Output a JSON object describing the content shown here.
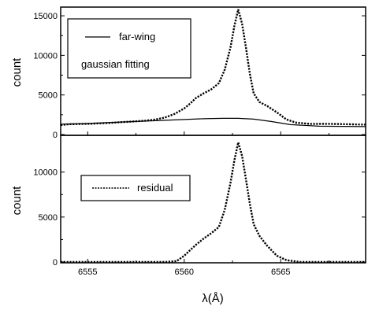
{
  "chart_data": [
    {
      "type": "line",
      "ylabel": "count",
      "xlim": [
        6553.6,
        6569.4
      ],
      "ylim": [
        0,
        16000
      ],
      "yticks": [
        0,
        5000,
        10000,
        15000
      ],
      "ytick_labels": [
        "0",
        "5000",
        "10000",
        "15000"
      ],
      "legend": [
        "far-wing",
        "gaussian fitting"
      ],
      "series": [
        {
          "name": "far-wing",
          "style": "solid",
          "x": [
            6553.6,
            6555,
            6557,
            6559,
            6560,
            6561,
            6562,
            6562.8,
            6563.6,
            6564.5,
            6565.5,
            6567,
            6569.4
          ],
          "y": [
            1300,
            1400,
            1600,
            1800,
            1900,
            2000,
            2050,
            2050,
            1950,
            1650,
            1250,
            1050,
            1000
          ]
        },
        {
          "name": "",
          "style": "dotted",
          "x": [
            6553.6,
            6554,
            6555,
            6556,
            6557,
            6558,
            6558.5,
            6559,
            6559.5,
            6560,
            6560.3,
            6560.6,
            6561,
            6561.4,
            6561.8,
            6562.1,
            6562.4,
            6562.6,
            6562.8,
            6563.0,
            6563.2,
            6563.4,
            6563.6,
            6563.9,
            6564.3,
            6564.8,
            6565.3,
            6565.8,
            6566.5,
            6567.5,
            6568.5,
            6569.4
          ],
          "y": [
            1200,
            1300,
            1350,
            1450,
            1600,
            1750,
            1900,
            2150,
            2600,
            3300,
            3900,
            4600,
            5200,
            5700,
            6500,
            8200,
            11000,
            13700,
            15800,
            14000,
            11000,
            7700,
            5200,
            4100,
            3600,
            2800,
            1900,
            1500,
            1350,
            1350,
            1300,
            1250
          ]
        }
      ]
    },
    {
      "type": "line",
      "ylabel": "count",
      "xlabel": "λ(Å)",
      "xlim": [
        6553.6,
        6569.4
      ],
      "ylim": [
        0,
        14000
      ],
      "xticks": [
        6555,
        6560,
        6565
      ],
      "xtick_labels": [
        "6555",
        "6560",
        "6565"
      ],
      "yticks": [
        0,
        5000,
        10000
      ],
      "ytick_labels": [
        "0",
        "5000",
        "10000"
      ],
      "legend": [
        "residual"
      ],
      "series": [
        {
          "name": "residual",
          "style": "dotted",
          "x": [
            6553.6,
            6555,
            6556,
            6557,
            6558,
            6559,
            6559.6,
            6560,
            6560.3,
            6560.6,
            6561,
            6561.4,
            6561.8,
            6562.1,
            6562.4,
            6562.6,
            6562.8,
            6563.0,
            6563.2,
            6563.4,
            6563.6,
            6563.9,
            6564.3,
            6564.8,
            6565.3,
            6566,
            6567,
            6568,
            6569.4
          ],
          "y": [
            0,
            0,
            0,
            0,
            0,
            0,
            100,
            700,
            1300,
            1900,
            2600,
            3200,
            3900,
            5800,
            8800,
            11300,
            13300,
            11800,
            9200,
            6500,
            4200,
            2900,
            1800,
            700,
            200,
            0,
            0,
            0,
            0
          ]
        }
      ]
    }
  ]
}
